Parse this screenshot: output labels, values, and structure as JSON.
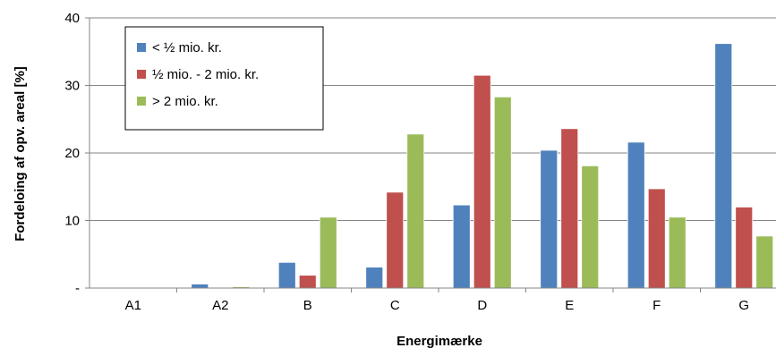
{
  "chart_data": {
    "type": "bar",
    "title": "",
    "xlabel": "Energimærke",
    "ylabel": "Fordeloing af opv. areal [%]",
    "categories": [
      "A1",
      "A2",
      "B",
      "C",
      "D",
      "E",
      "F",
      "G"
    ],
    "series": [
      {
        "name": "< ½ mio. kr.",
        "color": "#4f81bd",
        "values": [
          0,
          0.6,
          3.8,
          3.1,
          12.3,
          20.4,
          21.6,
          36.2
        ]
      },
      {
        "name": "½ mio. -  2 mio. kr.",
        "color": "#c0504d",
        "values": [
          0,
          0,
          1.9,
          14.2,
          31.5,
          23.6,
          14.7,
          12.0
        ]
      },
      {
        "name": "> 2 mio. kr.",
        "color": "#9bbb59",
        "values": [
          0,
          0.2,
          10.5,
          22.8,
          28.3,
          18.1,
          10.5,
          7.7
        ]
      }
    ],
    "y_ticks": [
      "-",
      "10",
      "20",
      "30",
      "40"
    ],
    "ylim": [
      0,
      40
    ],
    "grid": true,
    "legend": "top-left"
  }
}
